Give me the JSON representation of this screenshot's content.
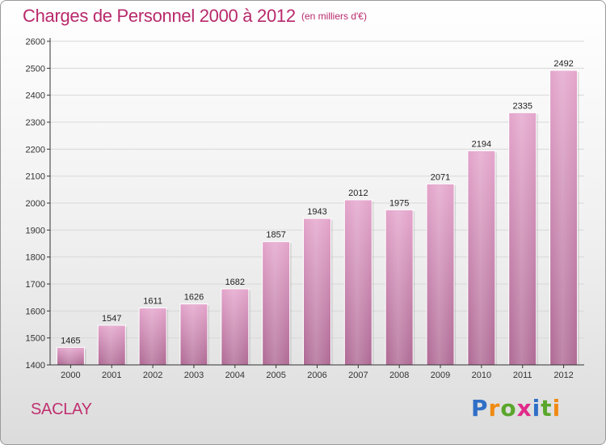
{
  "header": {
    "title": "Charges de Personnel 2000 à 2012",
    "subtitle": "(en milliers d'€)"
  },
  "footer": {
    "town": "SACLAY",
    "brand_letters": [
      "P",
      "r",
      "o",
      "x",
      "i",
      "t",
      "i"
    ],
    "brand_colors": [
      "#2f6fc7",
      "#f08a12",
      "#5aa62c",
      "#e12a8a",
      "#2f6fc7",
      "#5aa62c",
      "#f08a12"
    ]
  },
  "colors": {
    "title": "#b8296b",
    "bar_top": "#e4a6cc",
    "bar_bottom": "#b06c96",
    "grid": "#d8d8d8",
    "axis": "#333333"
  },
  "chart_data": {
    "type": "bar",
    "title": "Charges de Personnel 2000 à 2012",
    "subtitle": "(en milliers d'€)",
    "xlabel": "",
    "ylabel": "",
    "categories": [
      "2000",
      "2001",
      "2002",
      "2003",
      "2004",
      "2005",
      "2006",
      "2007",
      "2008",
      "2009",
      "2010",
      "2011",
      "2012"
    ],
    "values": [
      1465,
      1547,
      1611,
      1626,
      1682,
      1857,
      1943,
      2012,
      1975,
      2071,
      2194,
      2335,
      2492
    ],
    "ylim": [
      1400,
      2600
    ],
    "yticks": [
      1400,
      1500,
      1600,
      1700,
      1800,
      1900,
      2000,
      2100,
      2200,
      2300,
      2400,
      2500,
      2600
    ],
    "grid": true
  }
}
